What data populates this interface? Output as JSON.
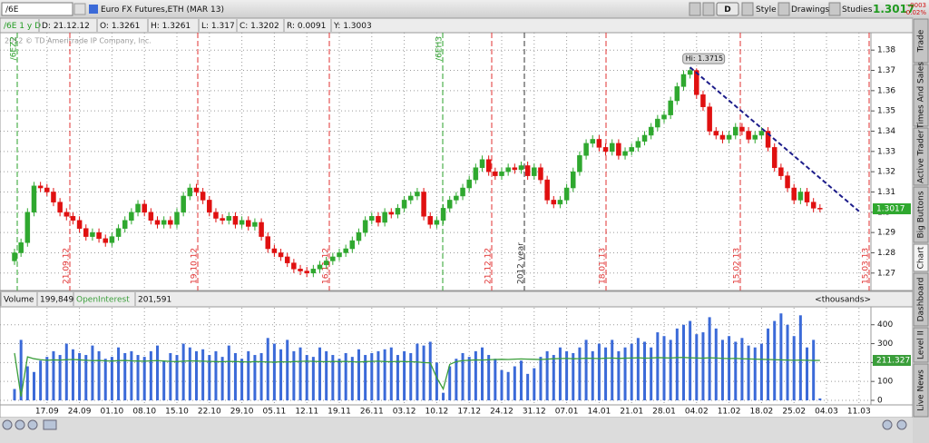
{
  "toolbar": {
    "symbol": "/6E",
    "description": "Euro FX Futures,ETH (MAR 13)",
    "buttons": [
      "D",
      "Style",
      "Drawings",
      "Studies"
    ],
    "last": "1.3017",
    "change": "-.0003",
    "change_pct": "-0.02%"
  },
  "info_bar": [
    "D: 21.12.12",
    "O: 1.3261",
    "H: 1.3261",
    "L: 1.317",
    "C: 1.3202",
    "R: 0.0091",
    "Y: 1.3003"
  ],
  "side_tabs": [
    "Trade",
    "Times And Sales",
    "Active Trader",
    "Big Buttons",
    "Chart",
    "Dashboard",
    "Level II",
    "Live News"
  ],
  "chart_data": [
    {
      "type": "candlestick",
      "label": "/6E 1 y D",
      "watermark": "2012 © TD Ameritrade IP Company, Inc.",
      "categories": [
        null,
        null,
        null,
        null,
        null,
        "17.09",
        null,
        null,
        null,
        null,
        "24.09",
        null,
        null,
        null,
        null,
        "01.10",
        null,
        null,
        null,
        null,
        "08.10",
        null,
        null,
        null,
        null,
        "15.10",
        null,
        null,
        null,
        null,
        "22.10",
        null,
        null,
        null,
        null,
        "29.10",
        null,
        null,
        null,
        null,
        "05.11",
        null,
        null,
        null,
        null,
        "12.11",
        null,
        null,
        null,
        null,
        "19.11",
        null,
        null,
        null,
        null,
        "26.11",
        null,
        null,
        null,
        null,
        "03.12",
        null,
        null,
        null,
        null,
        "10.12",
        null,
        null,
        null,
        null,
        "17.12",
        null,
        null,
        null,
        null,
        "24.12",
        null,
        null,
        null,
        null,
        "31.12",
        null,
        null,
        null,
        null,
        "07.01",
        null,
        null,
        null,
        null,
        "14.01",
        null,
        null,
        null,
        null,
        "21.01",
        null,
        null,
        null,
        null,
        "28.01",
        null,
        null,
        null,
        null,
        "04.02",
        null,
        null,
        null,
        null,
        "11.02",
        null,
        null,
        null,
        null,
        "18.02",
        null,
        null,
        null,
        null,
        "25.02",
        null,
        null,
        null,
        null,
        "04.03",
        null,
        null,
        null,
        null,
        "11.03",
        null,
        null,
        null,
        null
      ],
      "open": [
        1.276,
        1.28,
        1.285,
        1.3,
        1.313,
        1.312,
        1.31,
        1.305,
        1.3,
        1.298,
        1.296,
        1.292,
        1.288,
        1.29,
        1.287,
        1.285,
        1.288,
        1.292,
        1.296,
        1.3,
        1.304,
        1.3,
        1.296,
        1.294,
        1.296,
        1.294,
        1.3,
        1.308,
        1.312,
        1.31,
        1.306,
        1.3,
        1.297,
        1.296,
        1.298,
        1.294,
        1.296,
        1.293,
        1.295,
        1.288,
        1.282,
        1.28,
        1.278,
        1.275,
        1.272,
        1.271,
        1.27,
        1.272,
        1.274,
        1.276,
        1.278,
        1.28,
        1.282,
        1.286,
        1.29,
        1.296,
        1.298,
        1.295,
        1.3,
        1.299,
        1.302,
        1.306,
        1.308,
        1.31,
        1.298,
        1.294,
        1.296,
        1.302,
        1.306,
        1.308,
        1.312,
        1.316,
        1.322,
        1.326,
        1.32,
        1.318,
        1.32,
        1.322,
        1.321,
        1.323,
        1.318,
        1.322,
        1.316,
        1.306,
        1.304,
        1.306,
        1.312,
        1.32,
        1.328,
        1.334,
        1.336,
        1.332,
        1.33,
        1.334,
        1.328,
        1.33,
        1.332,
        1.335,
        1.338,
        1.342,
        1.346,
        1.348,
        1.355,
        1.362,
        1.368,
        1.37,
        1.358,
        1.352,
        1.34,
        1.338,
        1.336,
        1.338,
        1.342,
        1.34,
        1.336,
        1.338,
        1.34,
        1.332,
        1.322,
        1.318,
        1.312,
        1.306,
        1.31,
        1.305,
        1.302,
        null,
        null,
        null,
        null,
        null,
        null,
        null,
        null,
        null,
        null
      ],
      "high": [
        1.282,
        1.287,
        1.302,
        1.315,
        1.315,
        1.314,
        1.312,
        1.307,
        1.302,
        1.3,
        1.298,
        1.294,
        1.292,
        1.292,
        1.289,
        1.29,
        1.294,
        1.298,
        1.302,
        1.306,
        1.306,
        1.302,
        1.298,
        1.298,
        1.298,
        1.302,
        1.31,
        1.314,
        1.314,
        1.312,
        1.308,
        1.302,
        1.299,
        1.3,
        1.3,
        1.298,
        1.298,
        1.297,
        1.297,
        1.29,
        1.284,
        1.282,
        1.28,
        1.277,
        1.274,
        1.273,
        1.274,
        1.276,
        1.278,
        1.28,
        1.282,
        1.284,
        1.288,
        1.292,
        1.298,
        1.3,
        1.3,
        1.302,
        1.302,
        1.304,
        1.308,
        1.31,
        1.312,
        1.312,
        1.3,
        1.298,
        1.304,
        1.308,
        1.31,
        1.314,
        1.318,
        1.324,
        1.328,
        1.328,
        1.322,
        1.322,
        1.324,
        1.324,
        1.325,
        1.325,
        1.324,
        1.324,
        1.318,
        1.308,
        1.308,
        1.314,
        1.322,
        1.33,
        1.336,
        1.338,
        1.338,
        1.334,
        1.336,
        1.336,
        1.332,
        1.334,
        1.337,
        1.34,
        1.344,
        1.348,
        1.35,
        1.357,
        1.364,
        1.37,
        1.3715,
        1.371,
        1.36,
        1.354,
        1.342,
        1.34,
        1.34,
        1.344,
        1.344,
        1.342,
        1.34,
        1.342,
        1.342,
        1.334,
        1.324,
        1.32,
        1.314,
        1.312,
        1.312,
        1.307,
        1.304,
        null,
        null,
        null,
        null,
        null,
        null,
        null,
        null,
        null,
        null
      ],
      "low": [
        1.274,
        1.278,
        1.283,
        1.298,
        1.31,
        1.308,
        1.303,
        1.298,
        1.296,
        1.294,
        1.29,
        1.286,
        1.286,
        1.285,
        1.283,
        1.283,
        1.286,
        1.29,
        1.294,
        1.298,
        1.298,
        1.294,
        1.292,
        1.292,
        1.292,
        1.292,
        1.298,
        1.306,
        1.308,
        1.304,
        1.298,
        1.295,
        1.294,
        1.294,
        1.292,
        1.292,
        1.291,
        1.291,
        1.286,
        1.28,
        1.278,
        1.276,
        1.273,
        1.27,
        1.269,
        1.268,
        1.268,
        1.27,
        1.272,
        1.274,
        1.276,
        1.278,
        1.28,
        1.284,
        1.288,
        1.294,
        1.293,
        1.293,
        1.297,
        1.297,
        1.3,
        1.304,
        1.306,
        1.296,
        1.292,
        1.292,
        1.294,
        1.3,
        1.304,
        1.306,
        1.31,
        1.314,
        1.32,
        1.318,
        1.316,
        1.316,
        1.318,
        1.319,
        1.319,
        1.316,
        1.316,
        1.314,
        1.304,
        1.302,
        1.302,
        1.304,
        1.31,
        1.318,
        1.326,
        1.332,
        1.33,
        1.328,
        1.328,
        1.326,
        1.326,
        1.328,
        1.33,
        1.333,
        1.336,
        1.34,
        1.344,
        1.346,
        1.353,
        1.36,
        1.366,
        1.356,
        1.35,
        1.338,
        1.336,
        1.334,
        1.334,
        1.336,
        1.338,
        1.334,
        1.334,
        1.336,
        1.33,
        1.32,
        1.316,
        1.31,
        1.304,
        1.304,
        1.303,
        1.3,
        1.3,
        null,
        null,
        null,
        null,
        null,
        null,
        null,
        null,
        null,
        null
      ],
      "close": [
        1.28,
        1.285,
        1.3,
        1.313,
        1.312,
        1.31,
        1.305,
        1.3,
        1.298,
        1.296,
        1.292,
        1.288,
        1.29,
        1.287,
        1.285,
        1.288,
        1.292,
        1.296,
        1.3,
        1.304,
        1.3,
        1.296,
        1.294,
        1.296,
        1.294,
        1.3,
        1.308,
        1.312,
        1.31,
        1.306,
        1.3,
        1.297,
        1.296,
        1.298,
        1.294,
        1.296,
        1.293,
        1.295,
        1.288,
        1.282,
        1.28,
        1.278,
        1.275,
        1.272,
        1.271,
        1.27,
        1.272,
        1.274,
        1.276,
        1.278,
        1.28,
        1.282,
        1.286,
        1.29,
        1.296,
        1.298,
        1.295,
        1.3,
        1.299,
        1.302,
        1.306,
        1.308,
        1.31,
        1.298,
        1.294,
        1.296,
        1.302,
        1.306,
        1.308,
        1.312,
        1.316,
        1.322,
        1.326,
        1.32,
        1.318,
        1.32,
        1.322,
        1.321,
        1.323,
        1.318,
        1.322,
        1.316,
        1.306,
        1.304,
        1.306,
        1.312,
        1.32,
        1.328,
        1.334,
        1.336,
        1.332,
        1.33,
        1.334,
        1.328,
        1.33,
        1.332,
        1.335,
        1.338,
        1.342,
        1.346,
        1.348,
        1.355,
        1.362,
        1.368,
        1.37,
        1.358,
        1.352,
        1.34,
        1.338,
        1.336,
        1.338,
        1.342,
        1.34,
        1.336,
        1.338,
        1.34,
        1.332,
        1.322,
        1.318,
        1.312,
        1.306,
        1.31,
        1.305,
        1.302,
        1.3017,
        null,
        null,
        null,
        null,
        null,
        null,
        null,
        null,
        null,
        null
      ],
      "colors": {
        "up": "#2fa82f",
        "down": "#e01010"
      },
      "ylim": [
        1.2614,
        1.3886
      ],
      "yticks": [
        1.27,
        1.28,
        1.29,
        1.3,
        1.31,
        1.32,
        1.33,
        1.34,
        1.35,
        1.36,
        1.37,
        1.38
      ],
      "grid": true,
      "annotations": [
        {
          "value": 1.3715,
          "label": "Hi: 1.3715"
        }
      ],
      "trendline": {
        "values": [
          1.3715,
          1.3005
        ],
        "color": "#1c1c8a"
      },
      "events": [
        {
          "label": "/6EZ2",
          "color": "#2aa02a"
        },
        {
          "label": "21.09.12",
          "color": "#e03030"
        },
        {
          "label": "19.10.12",
          "color": "#e03030"
        },
        {
          "label": "16.11.12",
          "color": "#e03030"
        },
        {
          "label": "/6EH3",
          "color": "#2aa02a"
        },
        {
          "label": "21.12.12",
          "color": "#e03030"
        },
        {
          "label": "2012 year",
          "color": "#333333"
        },
        {
          "label": "18.01.13",
          "color": "#e03030"
        },
        {
          "label": "15.02.13",
          "color": "#e03030"
        },
        {
          "label": "15.03.13",
          "color": "#e03030"
        }
      ]
    },
    {
      "type": "bar",
      "header_values": [
        "199,849",
        "201,591"
      ],
      "unit_label": "<thousands>",
      "series": [
        {
          "name": "Volume",
          "color": "#3b6ad8",
          "values": [
            60,
            320,
            180,
            150,
            210,
            230,
            260,
            240,
            300,
            270,
            250,
            240,
            290,
            260,
            220,
            230,
            280,
            250,
            260,
            240,
            230,
            260,
            290,
            210,
            250,
            240,
            300,
            280,
            260,
            270,
            240,
            260,
            230,
            290,
            250,
            220,
            260,
            240,
            250,
            330,
            300,
            270,
            320,
            260,
            280,
            240,
            230,
            280,
            260,
            240,
            220,
            250,
            230,
            270,
            240,
            250,
            260,
            270,
            280,
            240,
            260,
            250,
            300,
            290,
            310,
            200,
            40,
            180,
            220,
            250,
            230,
            260,
            280,
            240,
            220,
            160,
            150,
            180,
            210,
            140,
            170,
            230,
            260,
            240,
            280,
            260,
            250,
            280,
            320,
            260,
            300,
            280,
            320,
            260,
            280,
            300,
            330,
            310,
            280,
            360,
            340,
            320,
            380,
            400,
            420,
            350,
            360,
            440,
            380,
            320,
            340,
            310,
            330,
            290,
            280,
            300,
            380,
            420,
            460,
            400,
            340,
            450,
            280,
            320,
            10,
            null,
            null,
            null,
            null,
            null,
            null,
            null,
            null,
            null,
            null
          ]
        },
        {
          "name": "OpenInterest",
          "type": "line",
          "color": "#3a9e3a",
          "values": [
            250,
            20,
            230,
            220,
            215,
            212,
            214,
            213,
            215,
            216,
            214,
            212,
            210,
            211,
            209,
            208,
            210,
            211,
            209,
            208,
            207,
            209,
            210,
            208,
            206,
            205,
            207,
            209,
            208,
            207,
            206,
            205,
            204,
            206,
            205,
            204,
            203,
            205,
            204,
            203,
            202,
            204,
            203,
            205,
            206,
            207,
            206,
            205,
            204,
            206,
            205,
            206,
            204,
            203,
            205,
            206,
            207,
            205,
            204,
            206,
            205,
            204,
            203,
            200,
            198,
            120,
            60,
            190,
            205,
            210,
            212,
            214,
            213,
            215,
            216,
            217,
            216,
            218,
            219,
            218,
            217,
            216,
            218,
            220,
            221,
            222,
            220,
            221,
            223,
            222,
            221,
            223,
            224,
            222,
            223,
            224,
            225,
            223,
            224,
            226,
            225,
            224,
            226,
            227,
            225,
            224,
            223,
            225,
            224,
            222,
            221,
            222,
            220,
            219,
            218,
            217,
            216,
            215,
            214,
            213,
            212,
            213,
            212,
            211,
            211.327,
            null,
            null,
            null,
            null,
            null,
            null,
            null,
            null,
            null,
            null
          ]
        }
      ],
      "ylim": [
        0,
        490
      ],
      "yticks": [
        0,
        100,
        200,
        300,
        400
      ],
      "grid": true
    }
  ]
}
